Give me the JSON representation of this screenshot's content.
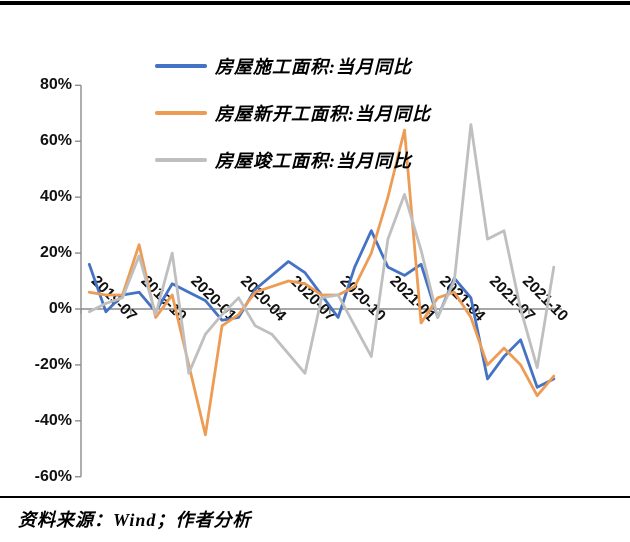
{
  "page": {
    "background": "#ffffff",
    "top_rule_color": "#000000",
    "bottom_rule_color": "#000000",
    "source_note": "资料来源：Wind；作者分析"
  },
  "legend": {
    "position": "top",
    "items": [
      {
        "label": "房屋施工面积:当月同比",
        "color": "#4472C4"
      },
      {
        "label": "房屋新开工面积:当月同比",
        "color": "#ED9C55"
      },
      {
        "label": "房屋竣工面积:当月同比",
        "color": "#BFBFBF"
      }
    ]
  },
  "chart_data": {
    "type": "line",
    "title": "",
    "xlabel": "",
    "ylabel": "",
    "x": [
      "2019-07",
      "2019-08",
      "2019-09",
      "2019-10",
      "2019-11",
      "2019-12",
      "2020-01",
      "2020-02",
      "2020-03",
      "2020-04",
      "2020-05",
      "2020-06",
      "2020-07",
      "2020-08",
      "2020-09",
      "2020-10",
      "2020-11",
      "2020-12",
      "2021-01",
      "2021-02",
      "2021-03",
      "2021-04",
      "2021-05",
      "2021-06",
      "2021-07",
      "2021-08",
      "2021-09",
      "2021-10",
      "2021-11"
    ],
    "x_tick_labels": [
      "2019-07",
      "2019-10",
      "2020-01",
      "2020-04",
      "2020-07",
      "2020-10",
      "2021-01",
      "2021-04",
      "2021-07",
      "2021-10"
    ],
    "x_label_interval_months": 3,
    "series": [
      {
        "name": "房屋施工面积:当月同比",
        "color": "#4472C4",
        "values": [
          16,
          -1,
          5,
          6,
          -1,
          9,
          6,
          3,
          -4,
          -3,
          7,
          12,
          17,
          13,
          5,
          -3,
          15,
          28,
          15,
          12,
          16,
          -3,
          11,
          4,
          -25,
          -17,
          -11,
          -28,
          -25
        ]
      },
      {
        "name": "房屋新开工面积:当月同比",
        "color": "#ED9C55",
        "values": [
          6,
          5,
          5,
          23,
          -3,
          5,
          -20,
          -45,
          -6,
          -2,
          6,
          8,
          10,
          9,
          5,
          5,
          8,
          20,
          40,
          64,
          -5,
          4,
          6,
          -3,
          -20,
          -14,
          -20,
          -31,
          -24
        ]
      },
      {
        "name": "房屋竣工面积:当月同比",
        "color": "#BFBFBF",
        "values": [
          -1,
          2,
          4,
          19,
          -2,
          20,
          -23,
          -9,
          -2,
          4,
          -6,
          -9,
          -16,
          -23,
          4,
          5,
          -6,
          -17,
          25,
          41,
          21,
          -3,
          10,
          66,
          25,
          28,
          0,
          -21,
          15
        ]
      }
    ],
    "ylim": [
      -60,
      80
    ],
    "y_ticks": [
      80,
      60,
      40,
      20,
      0,
      -20,
      -40,
      -60
    ],
    "y_tick_suffix": "%",
    "grid": false,
    "zero_axis_line": true,
    "legend_position": "top-left-inset",
    "axis_color": "#8c8c8c"
  }
}
